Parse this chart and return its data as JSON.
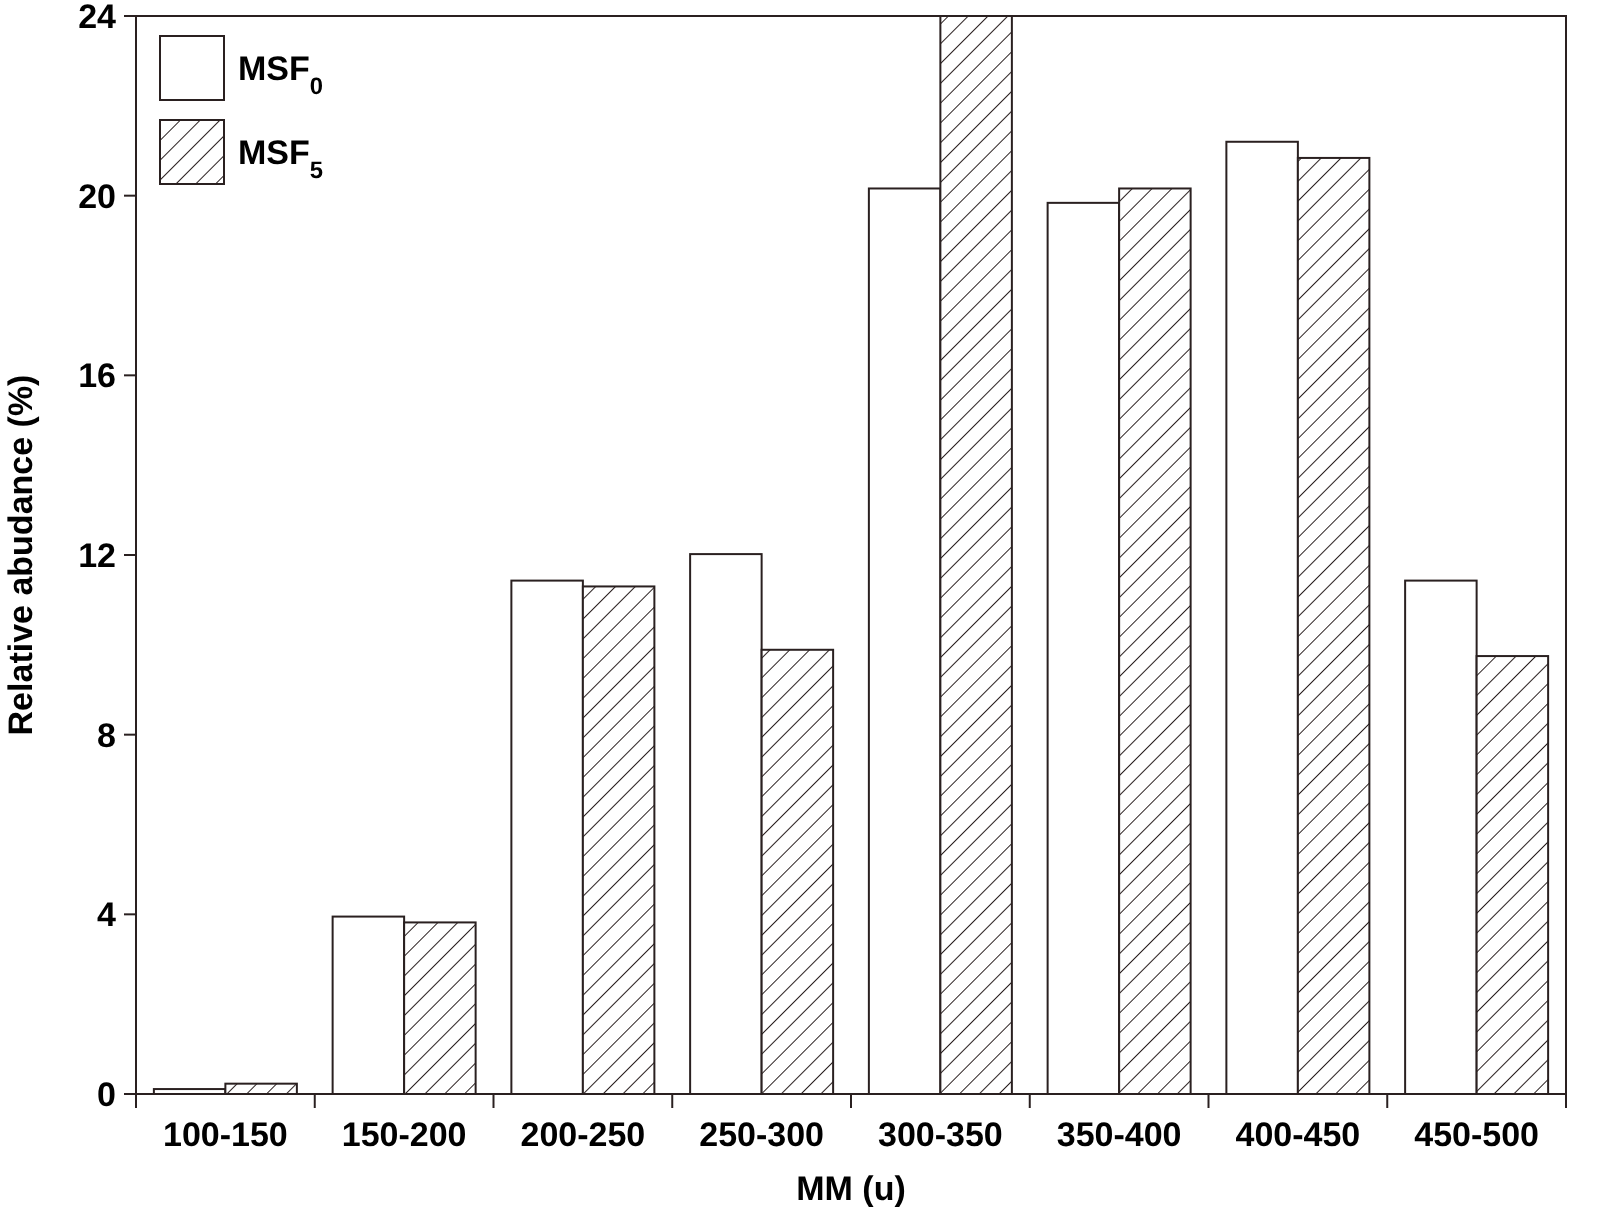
{
  "chart_data": {
    "type": "bar",
    "xlabel": "MM (u)",
    "ylabel": "Relative abudance (%)",
    "categories": [
      "100-150",
      "150-200",
      "200-250",
      "250-300",
      "300-350",
      "350-400",
      "400-450",
      "450-500"
    ],
    "series": [
      {
        "name": "MSF$_{0}$",
        "color": "#ffffff",
        "values": [
          0.11,
          3.95,
          11.43,
          12.02,
          20.16,
          19.84,
          21.2,
          11.43
        ]
      },
      {
        "name": "MSF$_{5}$",
        "color": "#2a2020",
        "values": [
          0.23,
          3.82,
          11.3,
          9.89,
          24,
          20.16,
          20.84,
          9.75
        ]
      }
    ],
    "ylim": [
      0,
      24
    ],
    "yticks": [
      0,
      4,
      8,
      12,
      16,
      20,
      24
    ],
    "grid": false,
    "legend": "top left"
  }
}
